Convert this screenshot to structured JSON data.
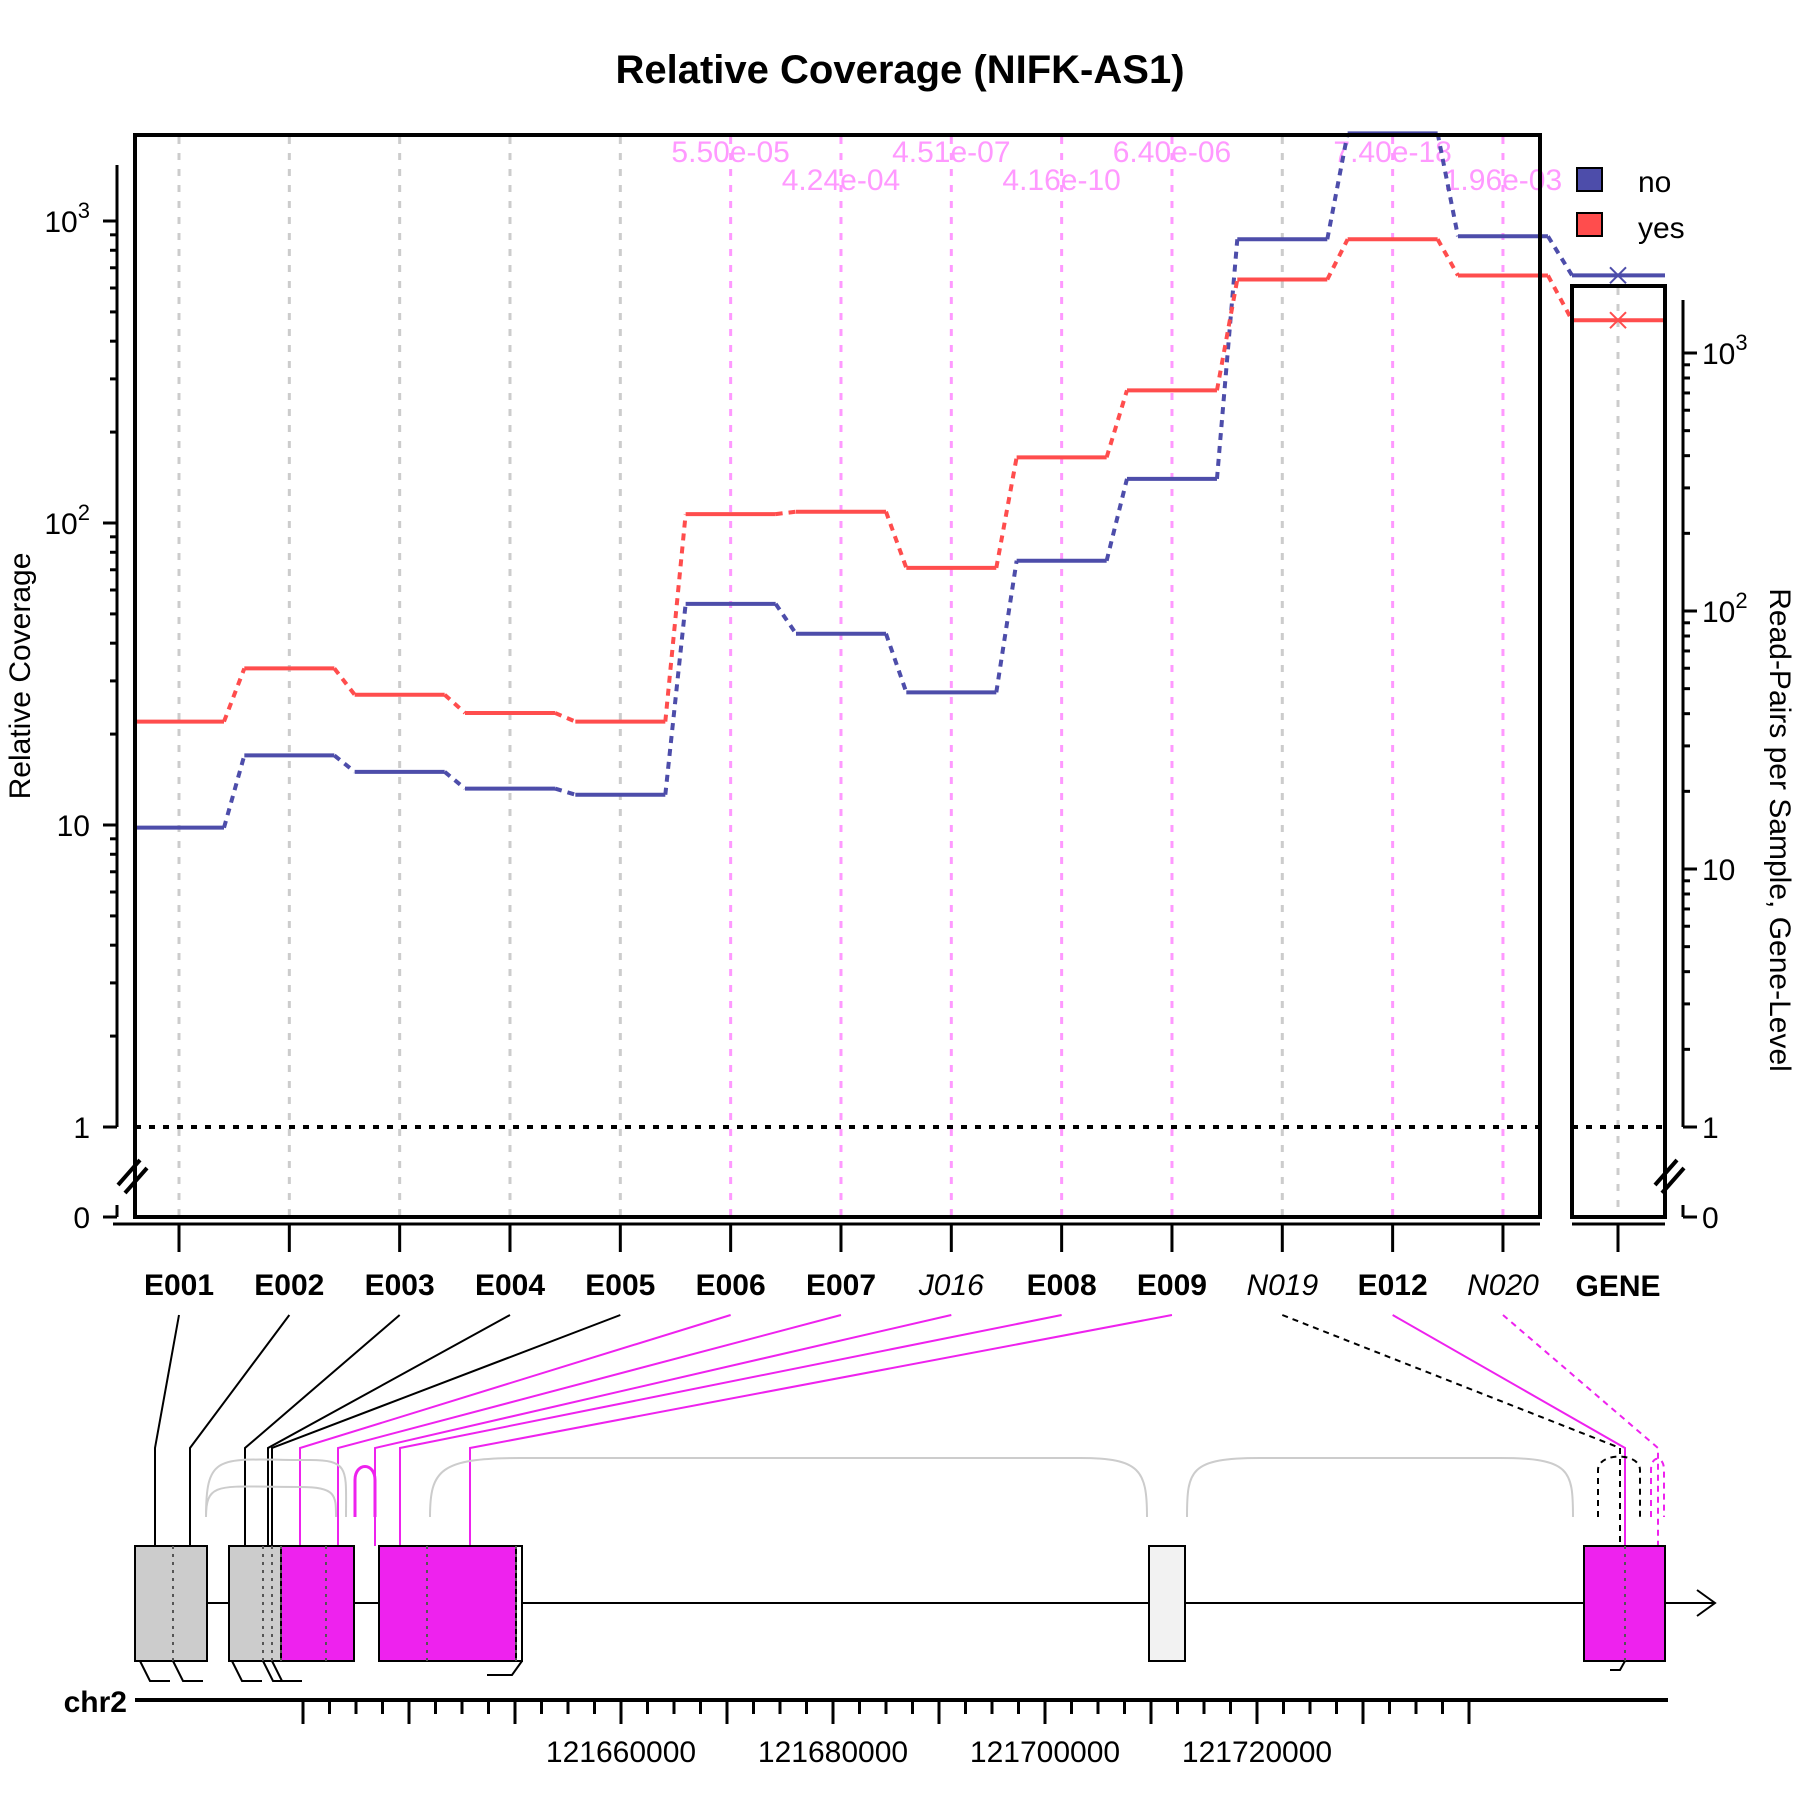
{
  "title": "Relative Coverage (NIFK-AS1)",
  "colors": {
    "no": "#4d4daa",
    "yes": "#ff4d4d",
    "significant": "#ee22ee",
    "pval": "#ff99ff",
    "exon_gray": "#cccccc",
    "novel_fill": "#f2f2f2"
  },
  "chart_data": {
    "type": "line",
    "ylabel": "Relative Coverage",
    "y2label": "Read-Pairs per Sample, Gene-Level",
    "yscale": "log",
    "yticks": [
      {
        "value": 0,
        "label": "0"
      },
      {
        "value": 1,
        "label": "1"
      },
      {
        "value": 10,
        "label": "10"
      },
      {
        "value": 100,
        "label": "10",
        "sup": "2"
      },
      {
        "value": 1000,
        "label": "10",
        "sup": "3"
      }
    ],
    "y2ticks": [
      {
        "value": 0,
        "label": "0"
      },
      {
        "value": 1,
        "label": "1"
      },
      {
        "value": 10,
        "label": "10"
      },
      {
        "value": 100,
        "label": "10",
        "sup": "2"
      },
      {
        "value": 1000,
        "label": "10",
        "sup": "3"
      }
    ],
    "features": [
      {
        "id": "E001",
        "italic": false,
        "sig": false
      },
      {
        "id": "E002",
        "italic": false,
        "sig": false
      },
      {
        "id": "E003",
        "italic": false,
        "sig": false
      },
      {
        "id": "E004",
        "italic": false,
        "sig": false
      },
      {
        "id": "E005",
        "italic": false,
        "sig": false
      },
      {
        "id": "E006",
        "italic": false,
        "sig": true
      },
      {
        "id": "E007",
        "italic": false,
        "sig": true
      },
      {
        "id": "J016",
        "italic": true,
        "sig": true
      },
      {
        "id": "E008",
        "italic": false,
        "sig": true
      },
      {
        "id": "E009",
        "italic": false,
        "sig": true
      },
      {
        "id": "N019",
        "italic": true,
        "sig": false
      },
      {
        "id": "E012",
        "italic": false,
        "sig": true
      },
      {
        "id": "N020",
        "italic": true,
        "sig": true
      }
    ],
    "gene_label": "GENE",
    "pvalues": [
      "",
      "",
      "",
      "",
      "",
      "5.50e-05",
      "4.24e-04",
      "4.51e-07",
      "4.16e-10",
      "6.40e-06",
      "",
      "7.40e-18",
      "1.96e-03"
    ],
    "series": [
      {
        "name": "no",
        "values": [
          9.8,
          17,
          15,
          13.2,
          12.6,
          54,
          43,
          27.5,
          75,
          140,
          870,
          1950,
          890
        ],
        "gene_value": 2000
      },
      {
        "name": "yes",
        "values": [
          22,
          33,
          27,
          23.5,
          22,
          107,
          109,
          71,
          165,
          275,
          640,
          870,
          660
        ],
        "gene_value": 1340
      }
    ],
    "legend": {
      "position": "top-right",
      "entries": [
        "no",
        "yes"
      ]
    }
  },
  "gene_model": {
    "chrom": "chr2",
    "coord_ticks": [
      {
        "value": 121660000,
        "label": "121660000"
      },
      {
        "value": 121680000,
        "label": "121680000"
      },
      {
        "value": 121700000,
        "label": "121700000"
      },
      {
        "value": 121720000,
        "label": "121720000"
      }
    ]
  }
}
